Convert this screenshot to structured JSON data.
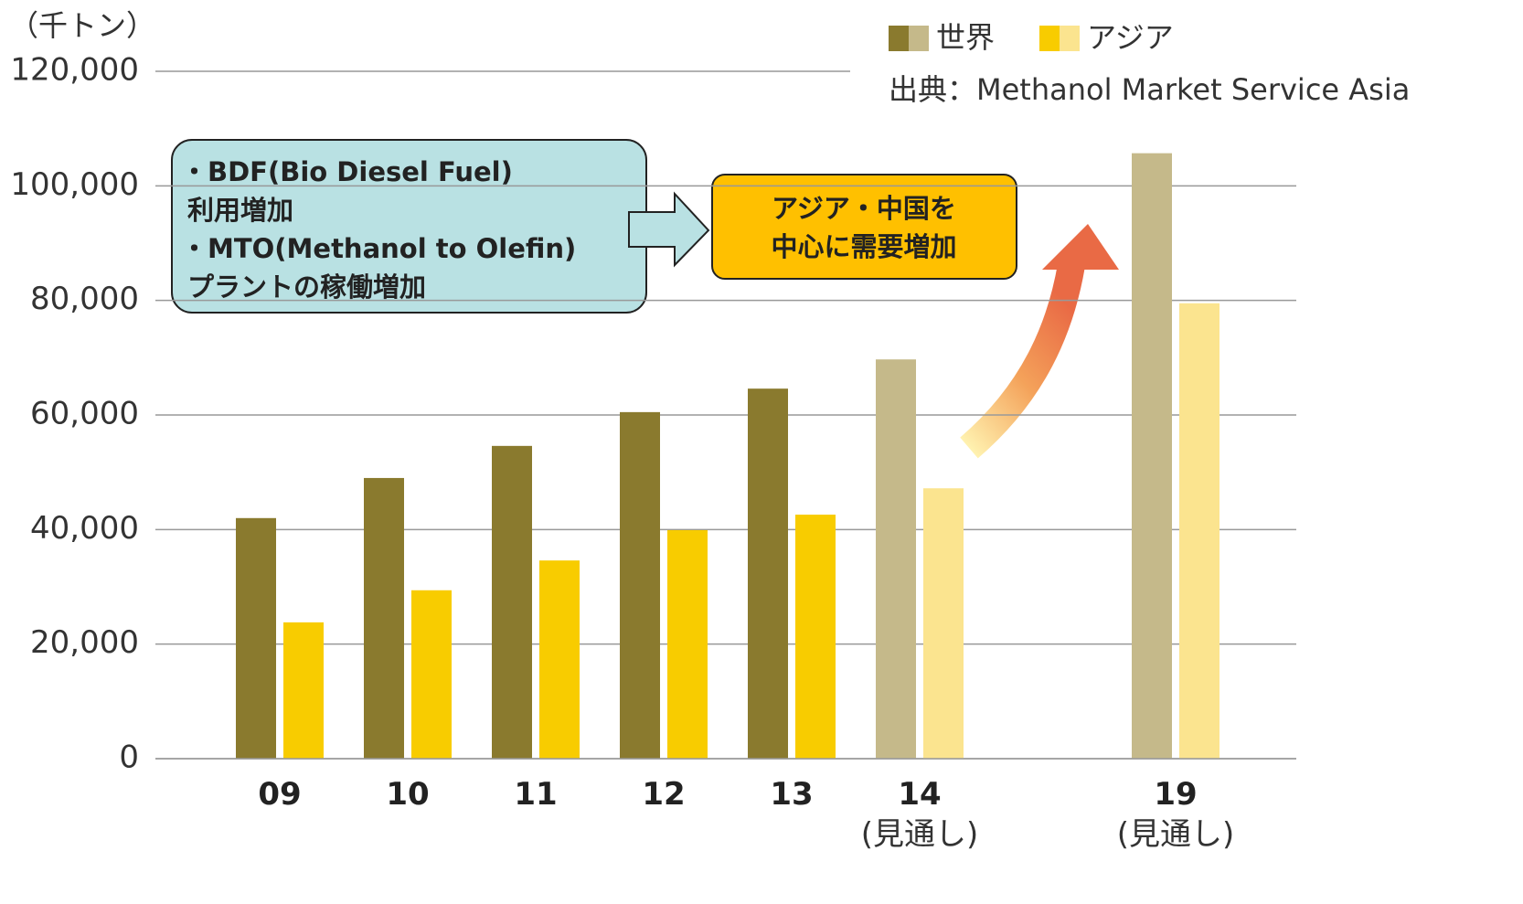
{
  "chart_data": {
    "type": "bar",
    "unit_label": "（千トン）",
    "source": "出典：Methanol  Market Service Asia",
    "categories": [
      "09",
      "10",
      "11",
      "12",
      "13",
      "14\n(見通し)",
      null,
      "19\n(見通し)"
    ],
    "series": [
      {
        "name": "世界",
        "color": "#8a7a2e",
        "colors": [
          "#8a7a2e",
          "#8a7a2e",
          "#8a7a2e",
          "#8a7a2e",
          "#8a7a2e",
          "#c5b98a",
          null,
          "#c5b98a"
        ],
        "values": [
          42000,
          49000,
          54600,
          60500,
          64600,
          69700,
          null,
          105700
        ]
      },
      {
        "name": "アジア",
        "color": "#f8cc00",
        "colors": [
          "#f8cc00",
          "#f8cc00",
          "#f8cc00",
          "#f8cc00",
          "#f8cc00",
          "#fbe48f",
          null,
          "#fbe48f"
        ],
        "values": [
          23800,
          29400,
          34600,
          39900,
          42600,
          47200,
          null,
          79500
        ]
      }
    ],
    "ylim": [
      0,
      120000
    ],
    "yticks": [
      0,
      {
        "value": 20000,
        "label": "20,000"
      },
      {
        "value": 40000,
        "label": "40,000"
      },
      {
        "value": 60000,
        "label": "60,000"
      },
      {
        "value": 80000,
        "label": "80,000"
      },
      {
        "value": 100000,
        "label": "100,000"
      },
      {
        "value": 120000,
        "label": "120,000"
      }
    ],
    "grid": true,
    "annotations": [
      {
        "lines": [
          "・BDF(Bio Diesel Fuel)",
          "利用増加",
          "・MTO(Methanol to Olefin)",
          "プラントの稼働増加"
        ]
      },
      {
        "lines": [
          "アジア・中国を",
          "中心に需要増加"
        ]
      }
    ]
  }
}
